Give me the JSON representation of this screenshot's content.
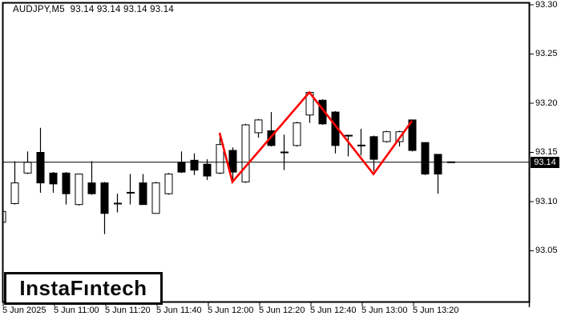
{
  "header": {
    "title_line": "AUDJPY,M5  93.14 93.14 93.14 93.14"
  },
  "symbol": "AUDJPY",
  "timeframe": "M5",
  "watermark": {
    "logo_text": "InstaFıntech"
  },
  "colors": {
    "background": "#FFFFFF",
    "foreground": "#000000",
    "bull_body": "#FFFFFF",
    "bear_body": "#000000",
    "zigzag": "#FF0000",
    "badge_bg": "#000000",
    "badge_text": "#FFFFFF"
  },
  "axes": {
    "price_labels": [
      "93.30",
      "93.25",
      "93.20",
      "93.15",
      "93.10",
      "93.05"
    ],
    "price_values": [
      93.3,
      93.25,
      93.2,
      93.15,
      93.1,
      93.05
    ],
    "current_price": 93.14,
    "current_price_label": "93.14",
    "time_labels": [
      {
        "text": "5 Jun 2025",
        "index": 0
      },
      {
        "text": "5 Jun 11:00",
        "index": 4
      },
      {
        "text": "5 Jun 11:20",
        "index": 8
      },
      {
        "text": "5 Jun 11:40",
        "index": 12
      },
      {
        "text": "5 Jun 12:00",
        "index": 16
      },
      {
        "text": "5 Jun 12:20",
        "index": 20
      },
      {
        "text": "5 Jun 12:40",
        "index": 24
      },
      {
        "text": "5 Jun 13:00",
        "index": 28
      },
      {
        "text": "5 Jun 13:20",
        "index": 32
      }
    ]
  },
  "chart_data": {
    "type": "candlestick",
    "title": "AUDJPY,M5",
    "symbol": "AUDJPY",
    "timeframe": "M5",
    "date": "5 Jun 2025",
    "ylim": [
      93.03,
      93.31
    ],
    "grid": false,
    "price_line": 93.14,
    "current_bar_ohlc": [
      93.14,
      93.14,
      93.14,
      93.14
    ],
    "candles": [
      {
        "time": "10:40",
        "o": 93.079,
        "h": 93.09,
        "l": 93.079,
        "c": 93.09
      },
      {
        "time": "10:45",
        "o": 93.098,
        "h": 93.141,
        "l": 93.097,
        "c": 93.119
      },
      {
        "time": "10:50",
        "o": 93.129,
        "h": 93.151,
        "l": 93.128,
        "c": 93.14
      },
      {
        "time": "10:55",
        "o": 93.15,
        "h": 93.175,
        "l": 93.109,
        "c": 93.119
      },
      {
        "time": "11:00",
        "o": 93.129,
        "h": 93.13,
        "l": 93.109,
        "c": 93.118
      },
      {
        "time": "11:05",
        "o": 93.129,
        "h": 93.13,
        "l": 93.097,
        "c": 93.108
      },
      {
        "time": "11:10",
        "o": 93.097,
        "h": 93.128,
        "l": 93.096,
        "c": 93.128
      },
      {
        "time": "11:15",
        "o": 93.119,
        "h": 93.141,
        "l": 93.107,
        "c": 93.108
      },
      {
        "time": "11:20",
        "o": 93.119,
        "h": 93.12,
        "l": 93.067,
        "c": 93.088
      },
      {
        "time": "11:25",
        "o": 93.098,
        "h": 93.108,
        "l": 93.089,
        "c": 93.098
      },
      {
        "time": "11:30",
        "o": 93.109,
        "h": 93.128,
        "l": 93.097,
        "c": 93.109
      },
      {
        "time": "11:35",
        "o": 93.119,
        "h": 93.128,
        "l": 93.097,
        "c": 93.097
      },
      {
        "time": "11:40",
        "o": 93.088,
        "h": 93.12,
        "l": 93.088,
        "c": 93.119
      },
      {
        "time": "11:45",
        "o": 93.108,
        "h": 93.129,
        "l": 93.107,
        "c": 93.128
      },
      {
        "time": "11:50",
        "o": 93.14,
        "h": 93.151,
        "l": 93.129,
        "c": 93.13
      },
      {
        "time": "11:55",
        "o": 93.142,
        "h": 93.149,
        "l": 93.127,
        "c": 93.132
      },
      {
        "time": "12:00",
        "o": 93.138,
        "h": 93.143,
        "l": 93.122,
        "c": 93.126
      },
      {
        "time": "12:05",
        "o": 93.129,
        "h": 93.169,
        "l": 93.128,
        "c": 93.158
      },
      {
        "time": "12:10",
        "o": 93.152,
        "h": 93.155,
        "l": 93.12,
        "c": 93.13
      },
      {
        "time": "12:15",
        "o": 93.12,
        "h": 93.179,
        "l": 93.119,
        "c": 93.178
      },
      {
        "time": "12:20",
        "o": 93.17,
        "h": 93.184,
        "l": 93.165,
        "c": 93.183
      },
      {
        "time": "12:25",
        "o": 93.172,
        "h": 93.191,
        "l": 93.156,
        "c": 93.157
      },
      {
        "time": "12:30",
        "o": 93.15,
        "h": 93.168,
        "l": 93.132,
        "c": 93.15
      },
      {
        "time": "12:35",
        "o": 93.157,
        "h": 93.181,
        "l": 93.156,
        "c": 93.18
      },
      {
        "time": "12:40",
        "o": 93.188,
        "h": 93.211,
        "l": 93.18,
        "c": 93.211
      },
      {
        "time": "12:45",
        "o": 93.203,
        "h": 93.204,
        "l": 93.178,
        "c": 93.179
      },
      {
        "time": "12:50",
        "o": 93.191,
        "h": 93.192,
        "l": 93.149,
        "c": 93.157
      },
      {
        "time": "12:55",
        "o": 93.167,
        "h": 93.168,
        "l": 93.146,
        "c": 93.167
      },
      {
        "time": "13:00",
        "o": 93.157,
        "h": 93.174,
        "l": 93.147,
        "c": 93.157
      },
      {
        "time": "13:05",
        "o": 93.166,
        "h": 93.167,
        "l": 93.131,
        "c": 93.143
      },
      {
        "time": "13:10",
        "o": 93.161,
        "h": 93.172,
        "l": 93.16,
        "c": 93.171
      },
      {
        "time": "13:15",
        "o": 93.161,
        "h": 93.172,
        "l": 93.156,
        "c": 93.171
      },
      {
        "time": "13:20",
        "o": 93.183,
        "h": 93.183,
        "l": 93.151,
        "c": 93.152
      },
      {
        "time": "13:25",
        "o": 93.16,
        "h": 93.16,
        "l": 93.127,
        "c": 93.128
      },
      {
        "time": "13:30",
        "o": 93.148,
        "h": 93.148,
        "l": 93.108,
        "c": 93.128
      },
      {
        "time": "13:35",
        "o": 93.14,
        "h": 93.14,
        "l": 93.14,
        "c": 93.14
      }
    ],
    "overlays": [
      {
        "name": "zigzag",
        "type": "line",
        "color": "#FF0000",
        "points": [
          {
            "time": "12:05",
            "index": 17,
            "price": 93.17
          },
          {
            "time": "12:10",
            "index": 18,
            "price": 93.12
          },
          {
            "time": "12:40",
            "index": 24,
            "price": 93.211
          },
          {
            "time": "13:05",
            "index": 29,
            "price": 93.128
          },
          {
            "time": "13:20",
            "index": 32,
            "price": 93.182
          }
        ]
      }
    ],
    "legend_position": "none"
  }
}
